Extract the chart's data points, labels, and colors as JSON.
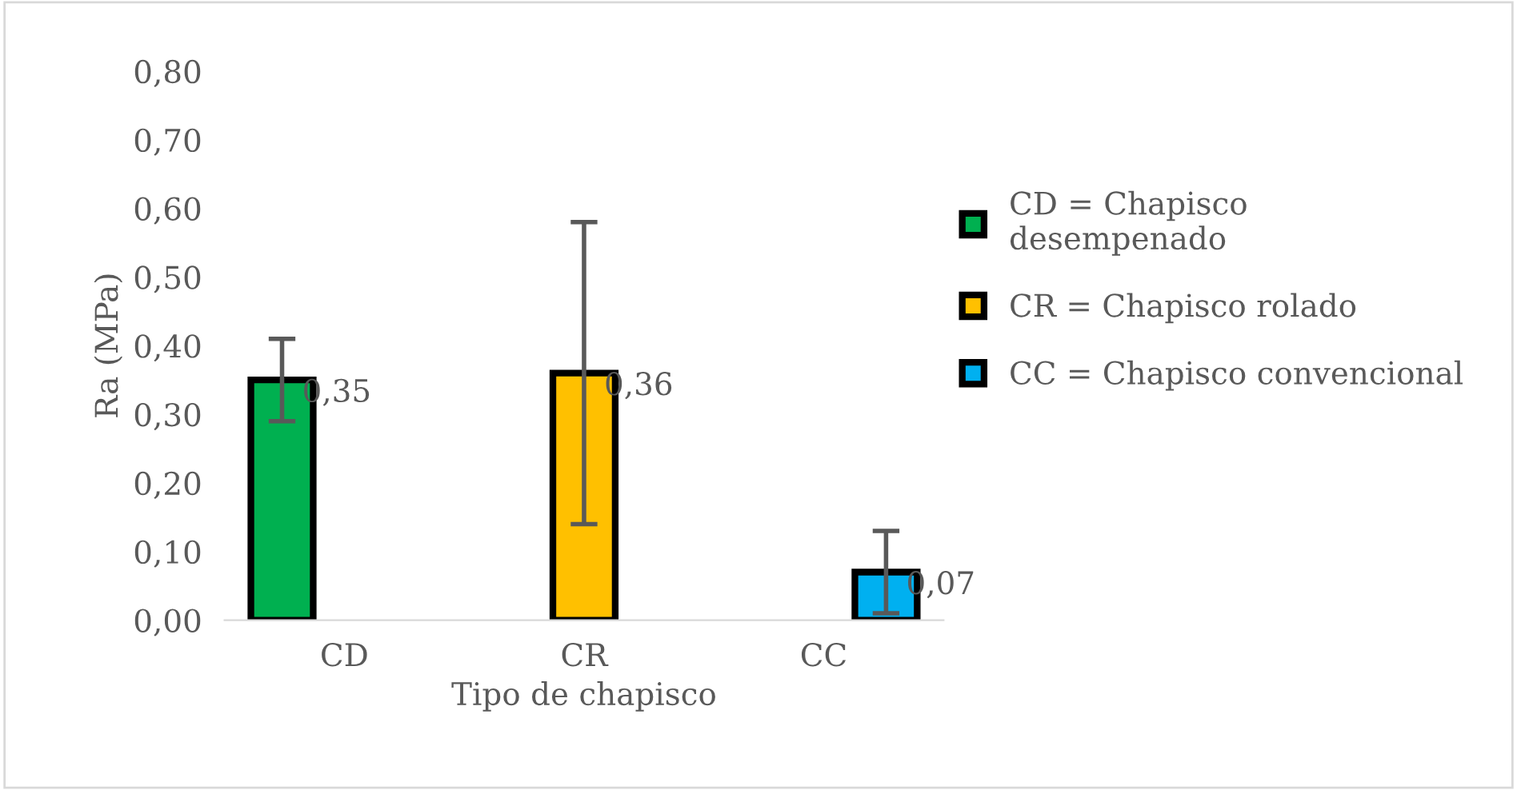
{
  "chart_data": {
    "type": "bar",
    "xlabel": "Tipo de chapisco",
    "ylabel": "Ra (MPa)",
    "categories": [
      "CD",
      "CR",
      "CC"
    ],
    "series": [
      {
        "name": "CD = Chapisco\ndesempenado",
        "color": "#00b050",
        "values": [
          0.35,
          null,
          null
        ],
        "errors": [
          0.06,
          null,
          null
        ],
        "value_labels": [
          "0,35",
          null,
          null
        ]
      },
      {
        "name": "CR = Chapisco rolado",
        "color": "#ffc000",
        "values": [
          null,
          0.36,
          null
        ],
        "errors": [
          null,
          0.22,
          null
        ],
        "value_labels": [
          null,
          "0,36",
          null
        ]
      },
      {
        "name": "CC = Chapisco convencional",
        "color": "#00b0f0",
        "values": [
          null,
          null,
          0.07
        ],
        "errors": [
          null,
          null,
          0.06
        ],
        "value_labels": [
          null,
          null,
          "0,07"
        ]
      }
    ],
    "ylim": [
      0,
      0.8
    ],
    "yticks": [
      {
        "value": 0,
        "label": "0,00"
      },
      {
        "value": 0.1,
        "label": "0,10"
      },
      {
        "value": 0.2,
        "label": "0,20"
      },
      {
        "value": 0.3,
        "label": "0,30"
      },
      {
        "value": 0.4,
        "label": "0,40"
      },
      {
        "value": 0.5,
        "label": "0,50"
      },
      {
        "value": 0.6,
        "label": "0,60"
      },
      {
        "value": 0.7,
        "label": "0,70"
      },
      {
        "value": 0.8,
        "label": "0,80"
      }
    ],
    "grid": false,
    "legend": "right"
  }
}
